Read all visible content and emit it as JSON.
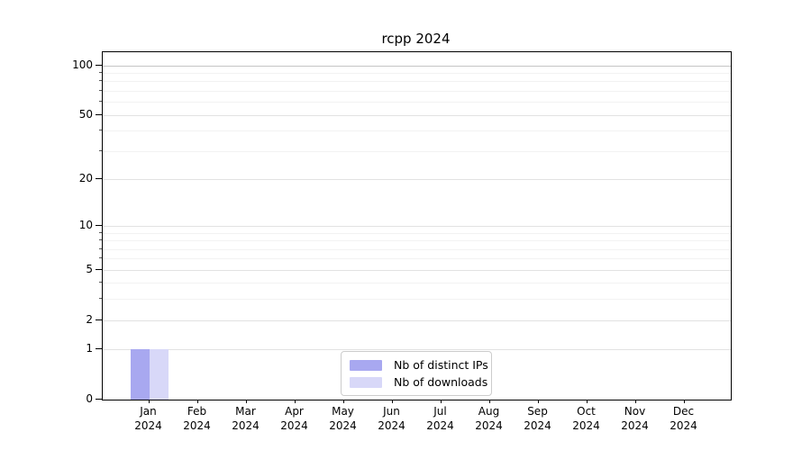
{
  "chart_data": {
    "type": "bar",
    "title": "rcpp 2024",
    "categories": [
      "Jan",
      "Feb",
      "Mar",
      "Apr",
      "May",
      "Jun",
      "Jul",
      "Aug",
      "Sep",
      "Oct",
      "Nov",
      "Dec"
    ],
    "x_tick_second_line": "2024",
    "series": [
      {
        "name": "Nb of distinct IPs",
        "color": "#a8a8f0",
        "values": [
          1,
          0,
          0,
          0,
          0,
          0,
          0,
          0,
          0,
          0,
          0,
          0
        ]
      },
      {
        "name": "Nb of downloads",
        "color": "#d8d8f8",
        "values": [
          1,
          0,
          0,
          0,
          0,
          0,
          0,
          0,
          0,
          0,
          0,
          0
        ]
      }
    ],
    "xlabel": "",
    "ylabel": "",
    "yscale": "log1p",
    "ylim": [
      0,
      120
    ],
    "y_major_ticks": [
      100,
      50,
      20,
      10,
      5,
      2,
      1,
      0
    ],
    "y_minor_ticks": [
      90,
      80,
      70,
      60,
      40,
      30,
      9,
      8,
      7,
      6,
      4,
      3
    ],
    "grid": "horizontal",
    "legend_position": "inside-bottom-center"
  },
  "colors": {
    "grid_major": "#e2e2e2",
    "grid_minor": "#f2f2f2",
    "grid_top_emphasis": "#c4c4c4",
    "axis": "#000000",
    "legend_border": "#cccccc",
    "background": "#ffffff"
  }
}
